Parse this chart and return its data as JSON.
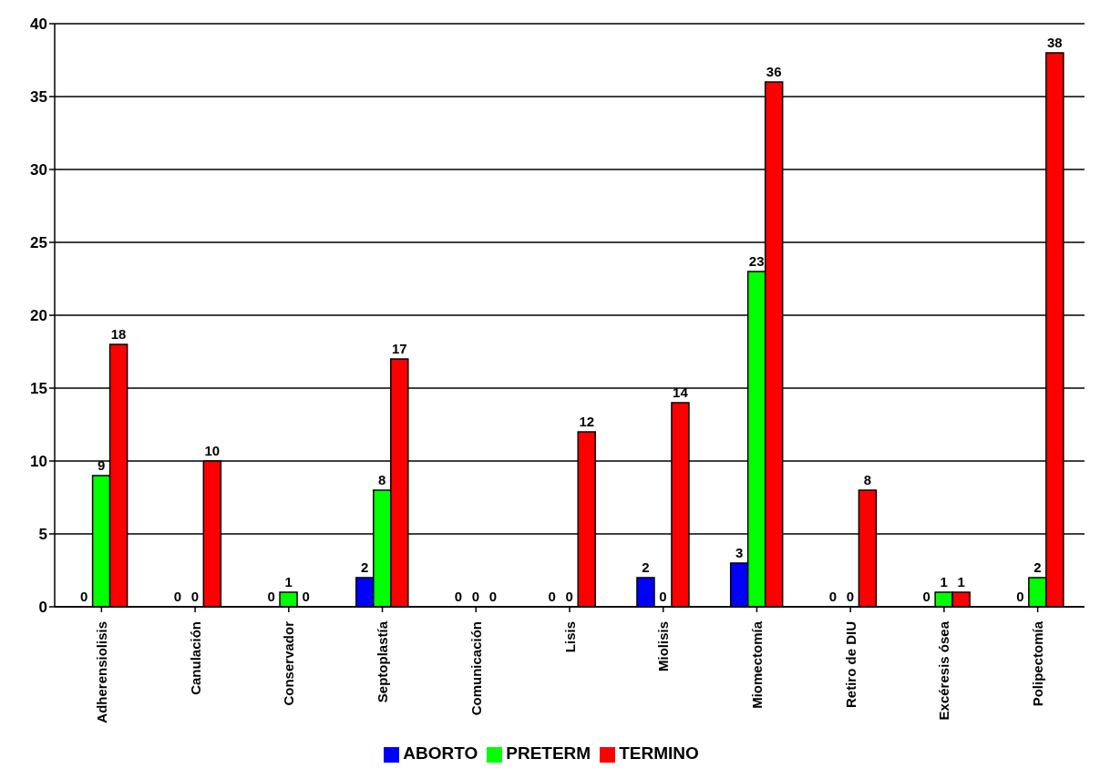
{
  "chart_data": {
    "type": "bar",
    "categories": [
      "Adherensiolisis",
      "Canulación",
      "Conservador",
      "Septoplastía",
      "Comunicación",
      "Lisis",
      "Miolisis",
      "Miomectomía",
      "Retiro de DIU",
      "Excéresis ósea",
      "Polipectomía"
    ],
    "series": [
      {
        "name": "ABORTO",
        "color": "#0000ff",
        "values": [
          0,
          0,
          0,
          2,
          0,
          0,
          2,
          3,
          0,
          0,
          0
        ]
      },
      {
        "name": "PRETERM",
        "color": "#00ff00",
        "values": [
          9,
          0,
          1,
          8,
          0,
          0,
          0,
          23,
          0,
          1,
          2
        ]
      },
      {
        "name": "TERMINO",
        "color": "#ff0000",
        "values": [
          18,
          10,
          0,
          17,
          0,
          12,
          14,
          36,
          8,
          1,
          38
        ]
      }
    ],
    "ylim": [
      0,
      40
    ],
    "yticks": [
      0,
      5,
      10,
      15,
      20,
      25,
      30,
      35,
      40
    ],
    "grid": "y",
    "legend": "bottom",
    "data_labels": true
  }
}
